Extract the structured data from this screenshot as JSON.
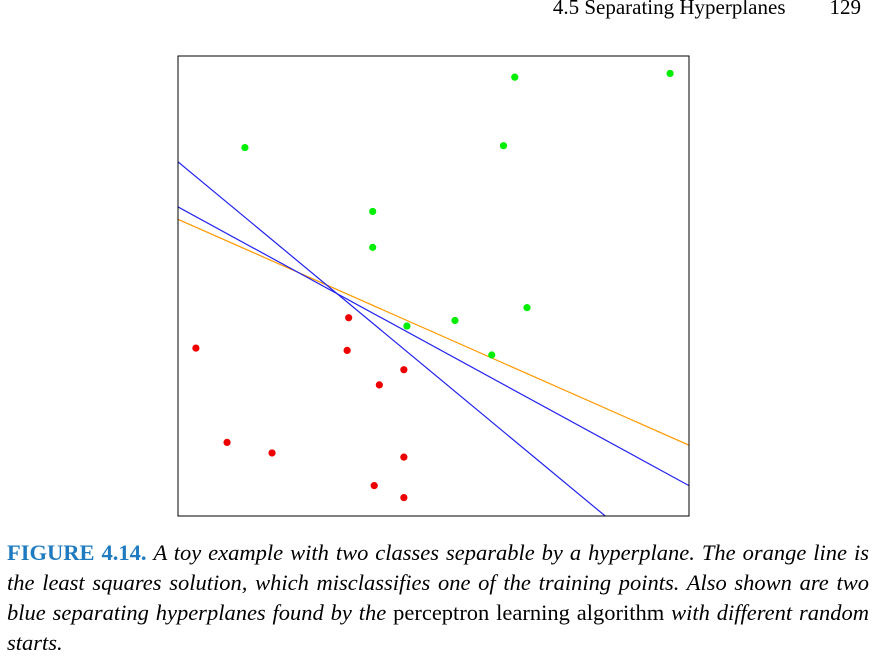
{
  "header": {
    "section_title": "4.5 Separating Hyperplanes",
    "page_number": "129"
  },
  "figure": {
    "label": "FIGURE 4.14.",
    "caption_parts": [
      {
        "text": "A toy example with two classes separable by a hyperplane. The orange line is the least squares solution, which misclassifies one of the training points. Also shown are two blue separating hyperplanes found by the ",
        "style": "italic"
      },
      {
        "text": "perceptron learning algorithm",
        "style": "roman"
      },
      {
        "text": " with different random starts.",
        "style": "italic"
      }
    ]
  },
  "chart_data": {
    "type": "scatter",
    "xlim": [
      0,
      1
    ],
    "ylim": [
      0,
      1
    ],
    "title": "",
    "xlabel": "",
    "ylabel": "",
    "axes_ticks": false,
    "grid": false,
    "colors": {
      "class_green": "#00ee00",
      "class_red": "#ee0000",
      "least_squares": "#ff9900",
      "perceptron": "#2222ee",
      "frame": "#000000"
    },
    "series": [
      {
        "class": "green",
        "color": "#00ee00",
        "points": [
          [
            0.659,
            0.954
          ],
          [
            0.963,
            0.962
          ],
          [
            0.131,
            0.801
          ],
          [
            0.637,
            0.805
          ],
          [
            0.381,
            0.662
          ],
          [
            0.381,
            0.584
          ],
          [
            0.683,
            0.453
          ],
          [
            0.542,
            0.425
          ],
          [
            0.448,
            0.413
          ],
          [
            0.614,
            0.35
          ]
        ]
      },
      {
        "class": "red",
        "color": "#ee0000",
        "points": [
          [
            0.334,
            0.431
          ],
          [
            0.035,
            0.365
          ],
          [
            0.331,
            0.36
          ],
          [
            0.442,
            0.318
          ],
          [
            0.394,
            0.285
          ],
          [
            0.096,
            0.16
          ],
          [
            0.184,
            0.137
          ],
          [
            0.442,
            0.128
          ],
          [
            0.384,
            0.066
          ],
          [
            0.442,
            0.04
          ]
        ]
      }
    ],
    "lines": [
      {
        "role": "least squares solution",
        "color": "#ff9900",
        "x": [
          0,
          1
        ],
        "y": [
          0.645,
          0.154
        ]
      },
      {
        "role": "perceptron separating hyperplane 1",
        "color": "#2222ee",
        "x": [
          0,
          1
        ],
        "y": [
          0.672,
          0.066
        ]
      },
      {
        "role": "perceptron separating hyperplane 2",
        "color": "#2222ee",
        "x": [
          0,
          0.836
        ],
        "y": [
          0.77,
          0.0
        ]
      }
    ]
  }
}
